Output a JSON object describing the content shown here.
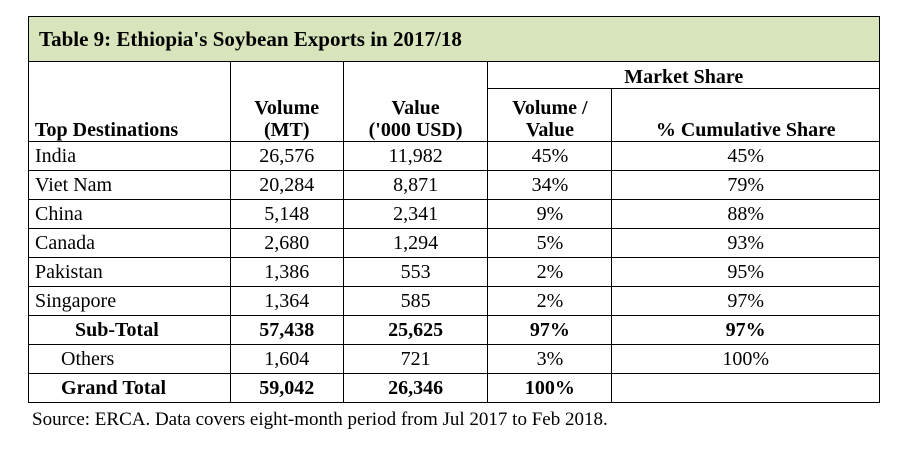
{
  "title": "Table 9: Ethiopia's Soybean Exports in 2017/18",
  "headers": {
    "group": "Market Share",
    "destination": "Top Destinations",
    "volume_l1": "Volume",
    "volume_l2": "(MT)",
    "value_l1": "Value",
    "value_l2": "('000 USD)",
    "share_l1": "Volume /",
    "share_l2": "Value",
    "cumulative": "% Cumulative Share"
  },
  "rows": [
    {
      "dest": "India",
      "volume": "26,576",
      "value": "11,982",
      "share": "45%",
      "cum": "45%"
    },
    {
      "dest": "Viet Nam",
      "volume": "20,284",
      "value": "8,871",
      "share": "34%",
      "cum": "79%"
    },
    {
      "dest": "China",
      "volume": "5,148",
      "value": "2,341",
      "share": "9%",
      "cum": "88%"
    },
    {
      "dest": "Canada",
      "volume": "2,680",
      "value": "1,294",
      "share": "5%",
      "cum": "93%"
    },
    {
      "dest": "Pakistan",
      "volume": "1,386",
      "value": "553",
      "share": "2%",
      "cum": "95%"
    },
    {
      "dest": "Singapore",
      "volume": "1,364",
      "value": "585",
      "share": "2%",
      "cum": "97%"
    },
    {
      "dest": "Sub-Total",
      "volume": "57,438",
      "value": "25,625",
      "share": "97%",
      "cum": "97%"
    },
    {
      "dest": "Others",
      "volume": "1,604",
      "value": "721",
      "share": "3%",
      "cum": "100%"
    },
    {
      "dest": "Grand Total",
      "volume": "59,042",
      "value": "26,346",
      "share": "100%",
      "cum": ""
    }
  ],
  "source": "Source: ERCA.  Data covers eight-month period from Jul 2017 to Feb 2018.",
  "colors": {
    "title_bg": "#d8e4bc"
  }
}
